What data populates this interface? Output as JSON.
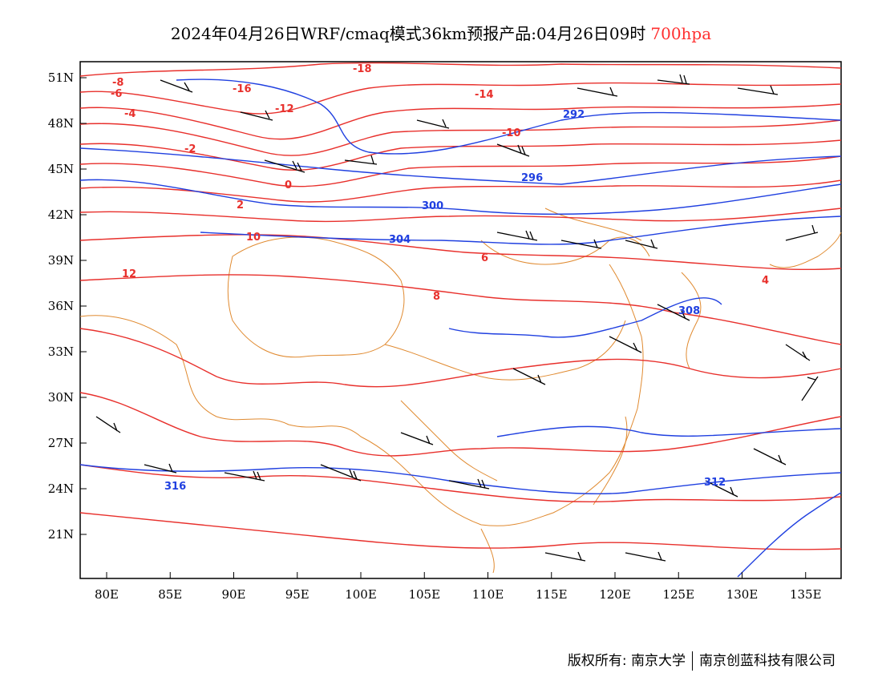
{
  "title": {
    "main": "2024年04月26日WRF/cmaq模式36km预报产品:04月26日09时",
    "level": "700hpa"
  },
  "axes": {
    "lon_labels": [
      "80E",
      "85E",
      "90E",
      "95E",
      "100E",
      "105E",
      "110E",
      "115E",
      "120E",
      "125E",
      "130E",
      "135E"
    ],
    "lat_labels": [
      "51N",
      "48N",
      "45N",
      "42N",
      "39N",
      "36N",
      "33N",
      "30N",
      "27N",
      "24N",
      "21N"
    ]
  },
  "contours": {
    "temperature_color": "#e8302c",
    "height_color": "#2040e0",
    "border_color": "#e08a30",
    "temperature_labels": [
      "-18",
      "-16",
      "-14",
      "-12",
      "-10",
      "-8",
      "-6",
      "-4",
      "-2",
      "0",
      "2",
      "4",
      "6",
      "8",
      "10",
      "12"
    ],
    "height_labels": [
      "292",
      "296",
      "300",
      "304",
      "308",
      "312",
      "316"
    ]
  },
  "footer": {
    "copyright": "版权所有: 南京大学",
    "company": "南京创蓝科技有限公司"
  }
}
